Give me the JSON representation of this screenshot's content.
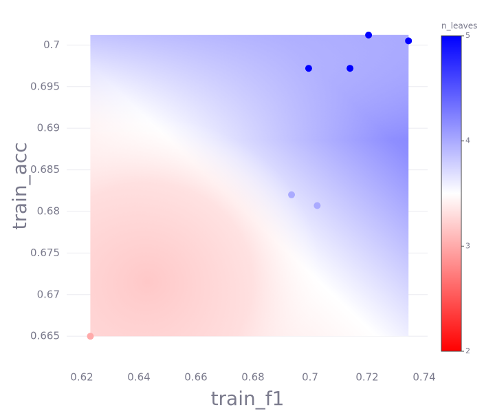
{
  "chart_data": {
    "type": "scatter",
    "x_label": "train_f1",
    "y_label": "train_acc",
    "x": [
      0.623,
      0.6935,
      0.7025,
      0.6995,
      0.714,
      0.7205,
      0.7345
    ],
    "series": [
      {
        "name": "n_leaves",
        "values": [
          0.665,
          0.682,
          0.6807,
          0.6972,
          0.6972,
          0.7012,
          0.7005
        ],
        "color_values": [
          3,
          4,
          4,
          5,
          5,
          5,
          5
        ]
      }
    ],
    "xlim": [
      0.6147,
      0.7412
    ],
    "ylim": [
      0.6622,
      0.7021
    ],
    "xticks": [
      0.62,
      0.64,
      0.66,
      0.68,
      0.7,
      0.72,
      0.74
    ],
    "yticks": [
      0.665,
      0.67,
      0.675,
      0.68,
      0.685,
      0.69,
      0.695,
      0.7
    ],
    "grid": true,
    "colorbar": {
      "title": "n_leaves",
      "lim": [
        2,
        5
      ],
      "ticks": [
        2,
        3,
        4,
        5
      ],
      "colorscale": [
        "#ff0000",
        "#ffffff",
        "#0000ff"
      ]
    }
  }
}
